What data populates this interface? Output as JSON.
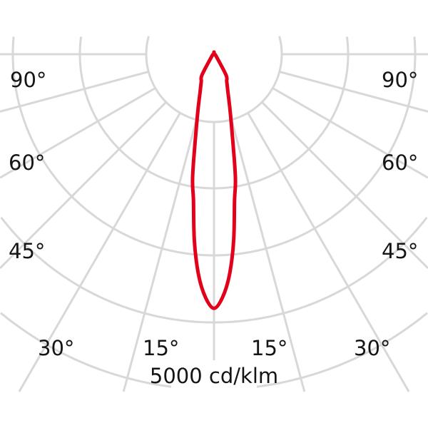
{
  "chart_data": {
    "type": "polar",
    "title": "",
    "scale_label": "5000 cd/klm",
    "ring_values": [
      1000,
      2000,
      3000,
      4000,
      5000
    ],
    "radial_angles": [
      0,
      15,
      30,
      45,
      60,
      75,
      90
    ],
    "angle_labels": {
      "left": [
        "90°",
        "60°",
        "45°",
        "30°",
        "15°"
      ],
      "right": [
        "90°",
        "60°",
        "45°",
        "30°",
        "15°"
      ]
    },
    "series": [
      {
        "angles": [
          0,
          2,
          4,
          6,
          8,
          10,
          15,
          20,
          25,
          30,
          45,
          60,
          90
        ],
        "values": [
          3790,
          3630,
          3300,
          2800,
          2200,
          1830,
          960,
          610,
          450,
          360,
          50,
          20,
          5
        ],
        "symmetric": true
      }
    ],
    "colors": {
      "curve": "#e2001a",
      "grid": "#d8d8d8",
      "text": "#151515"
    },
    "grid": true
  }
}
